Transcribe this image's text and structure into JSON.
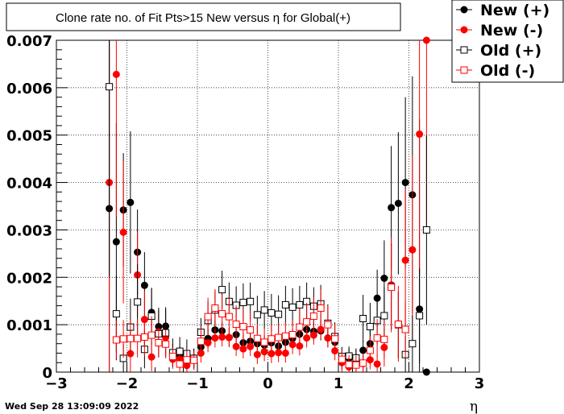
{
  "chart_data": {
    "type": "scatter",
    "title": "Clone rate no. of Fit Pts>15 New versus η for Global(+)",
    "xlabel": "η",
    "ylabel": "",
    "xlim": [
      -3,
      3
    ],
    "ylim": [
      0,
      0.007
    ],
    "grid": true,
    "legend_placement": "top-right",
    "x_ticks": [
      -3,
      -2,
      -1,
      0,
      1,
      2,
      3
    ],
    "x_tick_labels": [
      "−3",
      "−2",
      "−1",
      "0",
      "1",
      "2",
      "3"
    ],
    "y_ticks": [
      0,
      0.001,
      0.002,
      0.003,
      0.004,
      0.005,
      0.006,
      0.007
    ],
    "y_tick_labels": [
      "0",
      "0.001",
      "0.002",
      "0.003",
      "0.004",
      "0.005",
      "0.006",
      "0.007"
    ],
    "series": [
      {
        "name": "New (+)",
        "marker": "filled-circle",
        "color": "#000000",
        "x": [
          -2.25,
          -2.15,
          -2.05,
          -1.95,
          -1.85,
          -1.75,
          -1.65,
          -1.55,
          -1.45,
          -1.35,
          -1.25,
          -1.15,
          -1.05,
          -0.95,
          -0.85,
          -0.75,
          -0.65,
          -0.55,
          -0.45,
          -0.35,
          -0.25,
          -0.15,
          -0.05,
          0.05,
          0.15,
          0.25,
          0.35,
          0.45,
          0.55,
          0.65,
          0.75,
          0.85,
          0.95,
          1.05,
          1.15,
          1.25,
          1.35,
          1.45,
          1.55,
          1.65,
          1.75,
          1.85,
          1.95,
          2.05,
          2.15,
          2.25
        ],
        "y": [
          0.00345,
          0.00275,
          0.00342,
          0.00358,
          0.00253,
          0.00183,
          0.00126,
          0.00096,
          0.00097,
          0.0004,
          0.00035,
          0.00025,
          0.0003,
          0.00053,
          0.00071,
          0.00089,
          0.00087,
          0.00073,
          0.00079,
          0.00062,
          0.00065,
          0.0006,
          0.00057,
          0.00062,
          0.00055,
          0.00063,
          0.00071,
          0.0008,
          0.0009,
          0.00086,
          0.00087,
          0.00072,
          0.00063,
          0.00024,
          0.00029,
          0.00028,
          0.00046,
          0.0006,
          0.00156,
          0.00198,
          0.00347,
          0.00356,
          0.004,
          0.00374,
          0.00133,
          0.0
        ],
        "err": [
          0.004,
          0.0025,
          0.0012,
          0.0015,
          0.0009,
          0.0007,
          0.0005,
          0.0004,
          0.0004,
          0.0002,
          0.0002,
          0.0002,
          0.0002,
          0.0002,
          0.0002,
          0.0002,
          0.0002,
          0.0002,
          0.0002,
          0.0002,
          0.0002,
          0.0002,
          0.0002,
          0.0002,
          0.0002,
          0.0002,
          0.0002,
          0.0002,
          0.0002,
          0.0002,
          0.0002,
          0.0002,
          0.0002,
          0.0002,
          0.0002,
          0.0002,
          0.0002,
          0.0003,
          0.0006,
          0.0008,
          0.0013,
          0.0015,
          0.0018,
          0.0025,
          0.004,
          0
        ]
      },
      {
        "name": "New (-)",
        "marker": "filled-circle",
        "color": "#ff0000",
        "x": [
          -2.25,
          -2.15,
          -2.05,
          -1.95,
          -1.85,
          -1.75,
          -1.65,
          -1.55,
          -1.45,
          -1.35,
          -1.25,
          -1.15,
          -1.05,
          -0.95,
          -0.85,
          -0.75,
          -0.65,
          -0.55,
          -0.45,
          -0.35,
          -0.25,
          -0.15,
          -0.05,
          0.05,
          0.15,
          0.25,
          0.35,
          0.45,
          0.55,
          0.65,
          0.75,
          0.85,
          0.95,
          1.05,
          1.15,
          1.25,
          1.35,
          1.45,
          1.55,
          1.65,
          1.75,
          1.85,
          1.95,
          2.05,
          2.15,
          2.25
        ],
        "y": [
          0.004,
          0.00628,
          0.00295,
          0.00039,
          0.00205,
          0.00111,
          0.00032,
          0.00085,
          0.00073,
          0.00027,
          0.00027,
          0.00014,
          0.00025,
          0.0004,
          0.00062,
          0.00072,
          0.00074,
          0.00073,
          0.00054,
          0.00049,
          0.00054,
          0.00037,
          0.00043,
          0.00039,
          0.00041,
          0.0004,
          0.00058,
          0.00055,
          0.00072,
          0.00078,
          0.0009,
          0.00072,
          0.00045,
          0.0002,
          0.00011,
          0.0002,
          0.00018,
          0.00026,
          0.00017,
          0.00052,
          0.00184,
          0.00102,
          0.00236,
          0.00258,
          0.00502,
          0.007
        ],
        "err": [
          0.004,
          0.003,
          0.0015,
          0.0004,
          0.0009,
          0.0006,
          0.0003,
          0.0004,
          0.0004,
          0.0002,
          0.0002,
          0.0002,
          0.0002,
          0.0002,
          0.0002,
          0.0002,
          0.0002,
          0.0002,
          0.0002,
          0.0002,
          0.0002,
          0.0002,
          0.0002,
          0.0002,
          0.0002,
          0.0002,
          0.0002,
          0.0002,
          0.0002,
          0.0002,
          0.0002,
          0.0002,
          0.0002,
          0.0002,
          0.0002,
          0.0002,
          0.0002,
          0.0002,
          0.0002,
          0.0004,
          0.001,
          0.0008,
          0.0015,
          0.002,
          0.003,
          0.004
        ]
      },
      {
        "name": "Old (+)",
        "marker": "open-square",
        "color": "#000000",
        "x": [
          -2.25,
          -2.15,
          -2.05,
          -1.95,
          -1.85,
          -1.75,
          -1.65,
          -1.55,
          -1.45,
          -1.35,
          -1.25,
          -1.15,
          -1.05,
          -0.95,
          -0.85,
          -0.75,
          -0.65,
          -0.55,
          -0.45,
          -0.35,
          -0.25,
          -0.15,
          -0.05,
          0.05,
          0.15,
          0.25,
          0.35,
          0.45,
          0.55,
          0.65,
          0.75,
          0.85,
          0.95,
          1.05,
          1.15,
          1.25,
          1.35,
          1.45,
          1.55,
          1.65,
          1.75,
          1.85,
          1.95,
          2.05,
          2.15,
          2.25
        ],
        "y": [
          0.00602,
          0.00123,
          0.00029,
          0.00095,
          0.00148,
          0.00048,
          0.00118,
          0.00081,
          0.00083,
          0.00041,
          0.00044,
          0.00039,
          0.00029,
          0.00084,
          0.00109,
          0.00131,
          0.00174,
          0.00149,
          0.00141,
          0.00147,
          0.00149,
          0.00121,
          0.00131,
          0.00125,
          0.00122,
          0.00142,
          0.00137,
          0.00142,
          0.00149,
          0.00139,
          0.00144,
          0.00103,
          0.00075,
          0.00033,
          0.00034,
          0.0003,
          0.00113,
          0.00096,
          0.00109,
          0.00119,
          0.0018,
          0.001,
          0.00037,
          0.0006,
          0.00119,
          0.003
        ],
        "err": [
          0.004,
          0.0008,
          0.0003,
          0.0006,
          0.0008,
          0.0004,
          0.0006,
          0.0005,
          0.0005,
          0.0003,
          0.0003,
          0.0003,
          0.0002,
          0.0003,
          0.0004,
          0.0004,
          0.0004,
          0.0004,
          0.0004,
          0.0004,
          0.0004,
          0.0004,
          0.0004,
          0.0004,
          0.0004,
          0.0004,
          0.0004,
          0.0004,
          0.0004,
          0.0004,
          0.0004,
          0.0004,
          0.0003,
          0.0002,
          0.0002,
          0.0002,
          0.0005,
          0.0005,
          0.0005,
          0.0006,
          0.0009,
          0.0007,
          0.0004,
          0.0006,
          0.001,
          0.002
        ]
      },
      {
        "name": "Old (-)",
        "marker": "open-square",
        "color": "#ff0000",
        "x": [
          -2.15,
          -2.05,
          -1.95,
          -1.85,
          -1.75,
          -1.65,
          -1.55,
          -1.45,
          -1.35,
          -1.25,
          -1.15,
          -1.05,
          -0.95,
          -0.85,
          -0.75,
          -0.65,
          -0.55,
          -0.45,
          -0.35,
          -0.25,
          -0.15,
          -0.05,
          0.05,
          0.15,
          0.25,
          0.35,
          0.45,
          0.55,
          0.65,
          0.75,
          0.85,
          0.95,
          1.05,
          1.15,
          1.25,
          1.35,
          1.45,
          1.55,
          1.65,
          1.75,
          1.85,
          1.95
        ],
        "y": [
          0.00068,
          0.0007,
          0.00071,
          0.00071,
          0.00074,
          0.00078,
          0.00062,
          0.00059,
          0.00033,
          0.00017,
          0.00026,
          0.00025,
          0.00065,
          0.00117,
          0.00135,
          0.00123,
          0.00117,
          0.00101,
          0.00096,
          0.00089,
          0.00071,
          0.00063,
          0.0007,
          0.00073,
          0.00076,
          0.00079,
          0.00095,
          0.00106,
          0.00118,
          0.00135,
          0.001,
          0.0007,
          0.00027,
          0.00016,
          0.00015,
          0.00019,
          0.00046,
          0.00072,
          0.00069,
          0.00179,
          0.00101,
          0.0009
        ],
        "err": [
          0.0004,
          0.0004,
          0.0004,
          0.0004,
          0.0004,
          0.0004,
          0.0003,
          0.0003,
          0.0002,
          0.0002,
          0.0002,
          0.0002,
          0.0003,
          0.0004,
          0.0004,
          0.0004,
          0.0004,
          0.0004,
          0.0004,
          0.0004,
          0.0003,
          0.0003,
          0.0003,
          0.0003,
          0.0003,
          0.0003,
          0.0004,
          0.0004,
          0.0004,
          0.0004,
          0.0004,
          0.0003,
          0.0002,
          0.0002,
          0.0002,
          0.0002,
          0.0003,
          0.0004,
          0.0004,
          0.0009,
          0.0007,
          0.0006
        ]
      }
    ]
  },
  "footer": {
    "date": "Wed Sep 28 13:09:09 2022"
  },
  "colors": {
    "new_plus": "#000000",
    "new_minus": "#ff0000",
    "old_plus": "#000000",
    "old_minus": "#ff0000"
  }
}
